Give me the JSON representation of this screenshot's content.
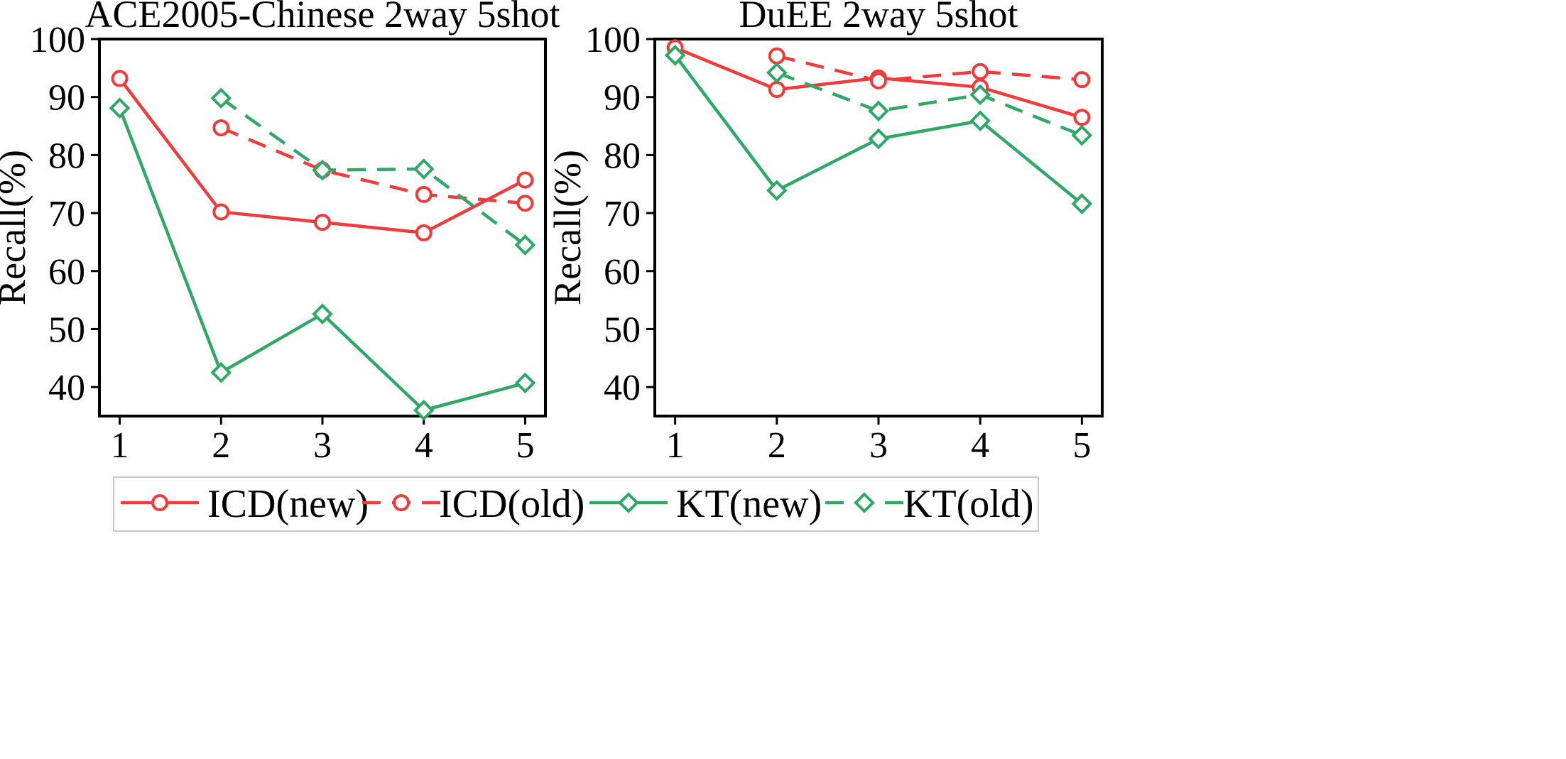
{
  "chart_data": [
    {
      "type": "line",
      "title": "ACE2005-Chinese 2way 5shot",
      "xlabel": "",
      "ylabel": "Recall(%)",
      "x": [
        1,
        2,
        3,
        4,
        5
      ],
      "xlim": [
        0.8,
        5.2
      ],
      "ylim": [
        35,
        100
      ],
      "yticks": [
        40,
        50,
        60,
        70,
        80,
        90,
        100
      ],
      "grid": false,
      "series": [
        {
          "name": "ICD(new)",
          "values": [
            93.2,
            70.2,
            68.4,
            66.6,
            75.7
          ]
        },
        {
          "name": "ICD(old)",
          "values": [
            null,
            84.7,
            77.4,
            73.2,
            71.7
          ]
        },
        {
          "name": "KT(new)",
          "values": [
            88.1,
            42.5,
            52.6,
            36.0,
            40.7
          ]
        },
        {
          "name": "KT(old)",
          "values": [
            null,
            89.8,
            77.4,
            77.6,
            64.5
          ]
        }
      ]
    },
    {
      "type": "line",
      "title": "DuEE 2way 5shot",
      "xlabel": "",
      "ylabel": "Recall(%)",
      "x": [
        1,
        2,
        3,
        4,
        5
      ],
      "xlim": [
        0.8,
        5.2
      ],
      "ylim": [
        35,
        100
      ],
      "yticks": [
        40,
        50,
        60,
        70,
        80,
        90,
        100
      ],
      "grid": false,
      "series": [
        {
          "name": "ICD(new)",
          "values": [
            98.5,
            91.3,
            93.3,
            91.7,
            86.5
          ]
        },
        {
          "name": "ICD(old)",
          "values": [
            null,
            97.1,
            92.8,
            94.4,
            93.0
          ]
        },
        {
          "name": "KT(new)",
          "values": [
            97.2,
            73.9,
            82.8,
            85.9,
            71.6
          ]
        },
        {
          "name": "KT(old)",
          "values": [
            null,
            94.2,
            87.6,
            90.4,
            83.4
          ]
        }
      ]
    }
  ],
  "legend": {
    "placement": "bottom-center",
    "items": [
      {
        "label": "ICD(new)",
        "color": "#ef3b3b",
        "dash": "solid",
        "marker": "circle"
      },
      {
        "label": "ICD(old)",
        "color": "#ef3b3b",
        "dash": "dashed",
        "marker": "circle"
      },
      {
        "label": "KT(new)",
        "color": "#2fa866",
        "dash": "solid",
        "marker": "diamond"
      },
      {
        "label": "KT(old)",
        "color": "#2fa866",
        "dash": "dashed",
        "marker": "diamond"
      }
    ]
  },
  "colors": {
    "icd": "#ef3b3b",
    "kt": "#2fa866",
    "axis": "#000000"
  }
}
